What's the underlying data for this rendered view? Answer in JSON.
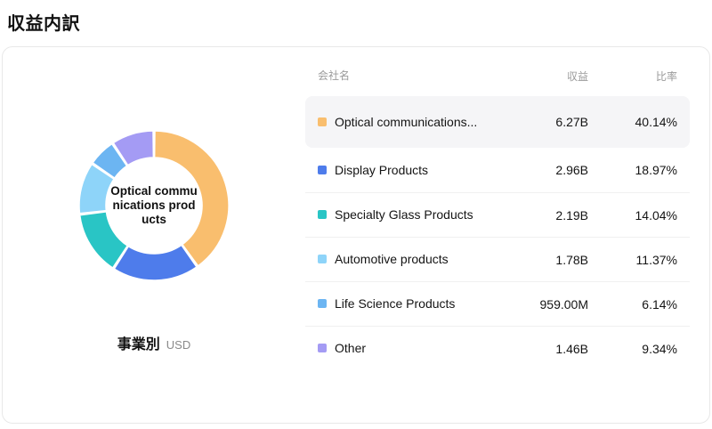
{
  "title": "収益内訳",
  "chart": {
    "center_label": "Optical communications products",
    "caption": "事業別",
    "caption_unit": "USD"
  },
  "table": {
    "headers": {
      "name": "会社名",
      "revenue": "収益",
      "ratio": "比率"
    },
    "rows": [
      {
        "name": "Optical communications...",
        "revenue": "6.27B",
        "ratio": "40.14%",
        "color": "#F9BE6E"
      },
      {
        "name": "Display Products",
        "revenue": "2.96B",
        "ratio": "18.97%",
        "color": "#4E7CEB"
      },
      {
        "name": "Specialty Glass Products",
        "revenue": "2.19B",
        "ratio": "14.04%",
        "color": "#29C5C5"
      },
      {
        "name": "Automotive products",
        "revenue": "1.78B",
        "ratio": "11.37%",
        "color": "#8ED4F9"
      },
      {
        "name": "Life Science Products",
        "revenue": "959.00M",
        "ratio": "6.14%",
        "color": "#6CB5F2"
      },
      {
        "name": "Other",
        "revenue": "1.46B",
        "ratio": "9.34%",
        "color": "#A49BF4"
      }
    ]
  },
  "chart_data": {
    "type": "pie",
    "donut": true,
    "title": "収益内訳",
    "group_by": "事業別",
    "unit": "USD",
    "legend_position": "right",
    "center_label": "Optical communications products",
    "labels": [
      "Optical communications products",
      "Display Products",
      "Specialty Glass Products",
      "Automotive products",
      "Life Science Products",
      "Other"
    ],
    "values_percent": [
      40.14,
      18.97,
      14.04,
      11.37,
      6.14,
      9.34
    ],
    "revenues_display": [
      "6.27B",
      "2.96B",
      "2.19B",
      "1.78B",
      "959.00M",
      "1.46B"
    ],
    "colors": [
      "#F9BE6E",
      "#4E7CEB",
      "#29C5C5",
      "#8ED4F9",
      "#6CB5F2",
      "#A49BF4"
    ]
  }
}
